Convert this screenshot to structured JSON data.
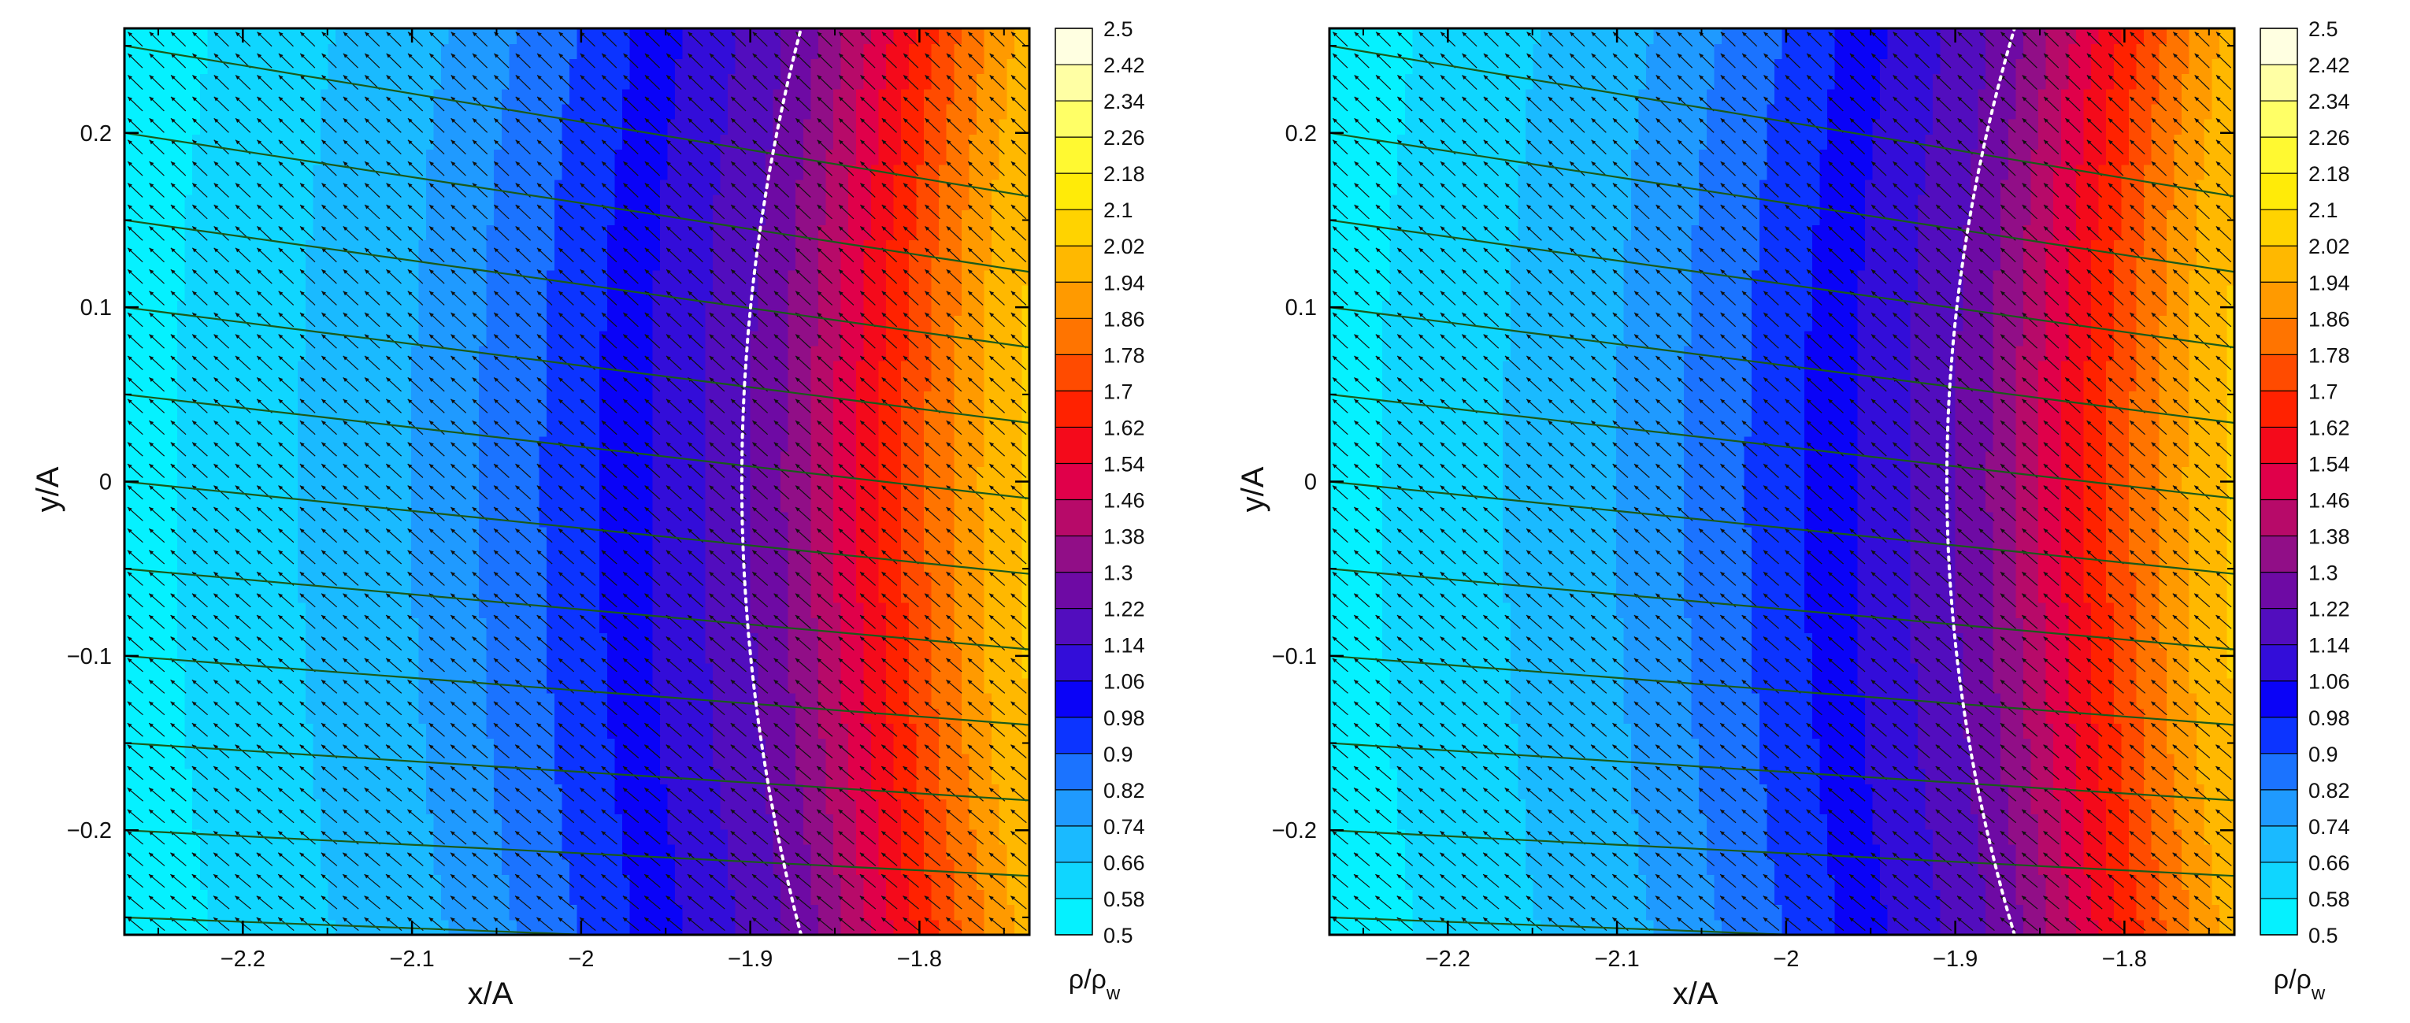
{
  "chart_data": [
    {
      "type": "heatmap",
      "panel": "left",
      "xlabel": "x/A",
      "ylabel": "y/A",
      "xlim": [
        -2.27,
        -1.735
      ],
      "ylim": [
        -0.26,
        0.26
      ],
      "x_ticks": [
        -2.2,
        -2.1,
        -2.0,
        -1.9,
        -1.8
      ],
      "x_tick_labels": [
        "−2.2",
        "−2.1",
        "−2",
        "−1.9",
        "−1.8"
      ],
      "y_ticks": [
        0.2,
        0.1,
        0.0,
        -0.1,
        -0.2
      ],
      "y_tick_labels": [
        "0.2",
        "0.1",
        "0",
        "−0.1",
        "−0.2"
      ],
      "colorbar": {
        "label": "ρ/ρ",
        "label_subscript": "w",
        "min": 0.5,
        "max": 2.5,
        "levels": [
          "2.5",
          "2.42",
          "2.34",
          "2.26",
          "2.18",
          "2.1",
          "2.02",
          "1.94",
          "1.86",
          "1.78",
          "1.7",
          "1.62",
          "1.54",
          "1.46",
          "1.38",
          "1.3",
          "1.22",
          "1.14",
          "1.06",
          "0.98",
          "0.9",
          "0.82",
          "0.74",
          "0.66",
          "0.58",
          "0.5"
        ]
      },
      "field": {
        "description_values": "rho/rho_w contours increasing with x; value ~0.55 at x=-2.27, ~0.98 at x=-2.0, ~1.06 at x=-1.96, ~1.3 at x=-1.88, ~1.62 at x=-1.83, ~2.0 at x=-1.76",
        "x": [
          -2.27,
          -2.2,
          -2.1,
          -2.05,
          -2.0,
          -1.96,
          -1.92,
          -1.9,
          -1.88,
          -1.86,
          -1.84,
          -1.82,
          -1.8,
          -1.78,
          -1.76,
          -1.735
        ],
        "rho": [
          0.55,
          0.62,
          0.74,
          0.84,
          0.95,
          1.06,
          1.16,
          1.22,
          1.3,
          1.4,
          1.52,
          1.64,
          1.76,
          1.86,
          1.96,
          2.04
        ],
        "curvature": 0.3
      },
      "sonic_line": {
        "x_center": -1.905,
        "x_at_edge": -1.87
      },
      "streamlines_y0": [
        -0.25,
        -0.2,
        -0.15,
        -0.1,
        -0.05,
        0.0,
        0.05,
        0.1,
        0.15,
        0.2,
        0.25
      ],
      "streamline_slope": -0.45,
      "vectors": true
    },
    {
      "type": "heatmap",
      "panel": "right",
      "xlabel": "x/A",
      "ylabel": "y/A",
      "xlim": [
        -2.27,
        -1.735
      ],
      "ylim": [
        -0.26,
        0.26
      ],
      "x_ticks": [
        -2.2,
        -2.1,
        -2.0,
        -1.9,
        -1.8
      ],
      "x_tick_labels": [
        "−2.2",
        "−2.1",
        "−2",
        "−1.9",
        "−1.8"
      ],
      "y_ticks": [
        0.2,
        0.1,
        0.0,
        -0.1,
        -0.2
      ],
      "y_tick_labels": [
        "0.2",
        "0.1",
        "0",
        "−0.1",
        "−0.2"
      ],
      "colorbar": {
        "label": "ρ/ρ",
        "label_subscript": "w",
        "min": 0.5,
        "max": 2.5,
        "levels": [
          "2.5",
          "2.42",
          "2.34",
          "2.26",
          "2.18",
          "2.1",
          "2.02",
          "1.94",
          "1.86",
          "1.78",
          "1.7",
          "1.62",
          "1.54",
          "1.46",
          "1.38",
          "1.3",
          "1.22",
          "1.14",
          "1.06",
          "0.98",
          "0.9",
          "0.82",
          "0.74",
          "0.66",
          "0.58",
          "0.5"
        ]
      },
      "field": {
        "x": [
          -2.27,
          -2.2,
          -2.1,
          -2.05,
          -2.0,
          -1.96,
          -1.92,
          -1.9,
          -1.88,
          -1.86,
          -1.84,
          -1.82,
          -1.8,
          -1.78,
          -1.76,
          -1.735
        ],
        "rho": [
          0.55,
          0.62,
          0.74,
          0.84,
          0.95,
          1.06,
          1.16,
          1.22,
          1.3,
          1.4,
          1.52,
          1.64,
          1.76,
          1.86,
          1.96,
          2.04
        ],
        "curvature": 0.3
      },
      "sonic_line": {
        "x_center": -1.905,
        "x_at_edge": -1.865
      },
      "streamlines_y0": [
        -0.25,
        -0.2,
        -0.15,
        -0.1,
        -0.05,
        0.0,
        0.05,
        0.1,
        0.15,
        0.2,
        0.25
      ],
      "streamline_slope": -0.45,
      "vectors": true
    }
  ],
  "colors": {
    "colormap": [
      "#00ffff",
      "#10d4ff",
      "#20a8ff",
      "#1a6cff",
      "#0000ff",
      "#4010d0",
      "#6a0aa8",
      "#a0107a",
      "#e0004a",
      "#ff1000",
      "#ff5000",
      "#ff9000",
      "#ffc000",
      "#ffe800",
      "#ffff40",
      "#ffffa0",
      "#ffffff"
    ],
    "streamline": "#1a5a1a",
    "vector": "#111111",
    "sonic_line": "#ffffff"
  }
}
